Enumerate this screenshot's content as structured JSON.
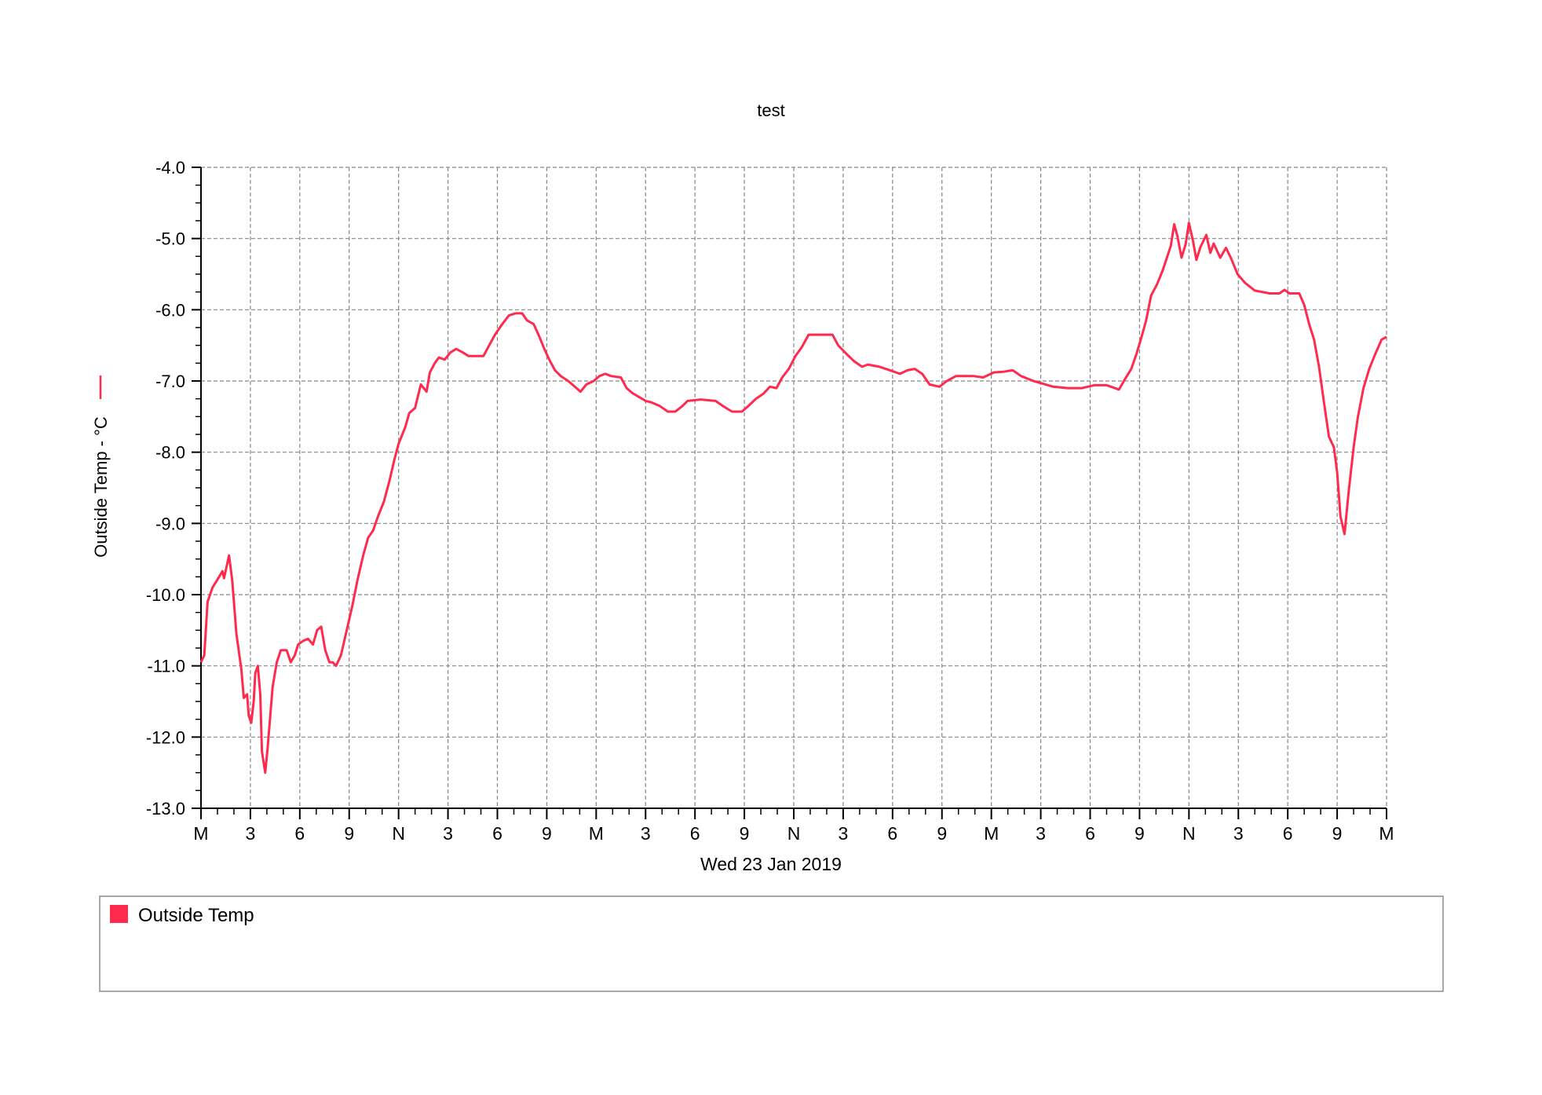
{
  "chart_data": {
    "type": "line",
    "title": "test",
    "xlabel": "Wed 23 Jan 2019",
    "ylabel": "Outside Temp - °C",
    "ylim": [
      -13.0,
      -4.0
    ],
    "xlim": [
      0,
      72
    ],
    "yticks": [
      "-4.0",
      "-5.0",
      "-6.0",
      "-7.0",
      "-8.0",
      "-9.0",
      "-10.0",
      "-11.0",
      "-12.0",
      "-13.0"
    ],
    "xtick_labels": [
      "M",
      "3",
      "6",
      "9",
      "N",
      "3",
      "6",
      "9",
      "M",
      "3",
      "6",
      "9",
      "N",
      "3",
      "6",
      "9",
      "M",
      "3",
      "6",
      "9",
      "N",
      "3",
      "6",
      "9",
      "M"
    ],
    "grid": true,
    "legend_placement": "bottom",
    "series": [
      {
        "name": "Outside Temp",
        "color": "#ff2a4d",
        "x": [
          0,
          0.2,
          0.4,
          0.7,
          1.1,
          1.3,
          1.4,
          1.7,
          1.9,
          2.15,
          2.45,
          2.6,
          2.8,
          2.9,
          3.05,
          3.2,
          3.3,
          3.45,
          3.6,
          3.7,
          3.9,
          4.05,
          4.35,
          4.6,
          4.85,
          5.2,
          5.45,
          5.7,
          5.9,
          6.2,
          6.5,
          6.8,
          7.05,
          7.3,
          7.55,
          7.8,
          8.0,
          8.2,
          8.5,
          8.85,
          9.2,
          9.5,
          9.85,
          10.15,
          10.45,
          10.75,
          11.1,
          11.45,
          11.75,
          12.0,
          12.4,
          12.65,
          13.0,
          13.35,
          13.7,
          13.9,
          14.2,
          14.45,
          14.8,
          15.15,
          15.5,
          15.9,
          16.25,
          17.15,
          17.5,
          17.85,
          18.3,
          18.7,
          19.1,
          19.5,
          19.8,
          20.2,
          20.5,
          20.85,
          21.15,
          21.5,
          21.85,
          22.3,
          22.7,
          23.05,
          23.4,
          23.85,
          24.2,
          24.55,
          24.9,
          25.5,
          25.85,
          26.2,
          26.65,
          27.0,
          27.35,
          27.85,
          28.35,
          28.8,
          29.2,
          29.55,
          30.35,
          31.25,
          31.75,
          32.25,
          32.85,
          33.2,
          33.7,
          34.15,
          34.55,
          34.95,
          35.3,
          35.7,
          36.1,
          36.5,
          36.9,
          37.7,
          38.35,
          38.7,
          39.2,
          39.65,
          40.15,
          40.5,
          41.2,
          41.85,
          42.45,
          42.9,
          43.35,
          43.8,
          44.25,
          44.85,
          45.3,
          45.85,
          46.9,
          47.5,
          48.15,
          48.75,
          49.3,
          49.8,
          50.55,
          51.15,
          51.75,
          52.65,
          53.5,
          54.25,
          55.0,
          55.75,
          56.1,
          56.5,
          56.8,
          57.1,
          57.4,
          57.7,
          58.05,
          58.4,
          58.9,
          59.1,
          59.3,
          59.55,
          59.8,
          60.0,
          60.25,
          60.45,
          60.7,
          61.05,
          61.3,
          61.5,
          61.9,
          62.25,
          62.6,
          62.95,
          63.4,
          64.0,
          64.9,
          65.5,
          65.8,
          66.1,
          66.7,
          67.0,
          67.3,
          67.6,
          67.9,
          68.2,
          68.5,
          68.8,
          69.0,
          69.2,
          69.45,
          69.7,
          70.0,
          70.25,
          70.6,
          70.95,
          71.3,
          71.7,
          72.0
        ],
        "y": [
          -10.95,
          -10.85,
          -10.1,
          -9.9,
          -9.75,
          -9.67,
          -9.77,
          -9.45,
          -9.8,
          -10.55,
          -11.05,
          -11.45,
          -11.4,
          -11.7,
          -11.8,
          -11.5,
          -11.1,
          -11.0,
          -11.4,
          -12.2,
          -12.5,
          -12.15,
          -11.3,
          -10.95,
          -10.78,
          -10.78,
          -10.95,
          -10.85,
          -10.7,
          -10.65,
          -10.62,
          -10.7,
          -10.5,
          -10.45,
          -10.78,
          -10.95,
          -10.95,
          -11.0,
          -10.85,
          -10.5,
          -10.15,
          -9.8,
          -9.45,
          -9.2,
          -9.1,
          -8.9,
          -8.7,
          -8.4,
          -8.1,
          -7.88,
          -7.65,
          -7.45,
          -7.38,
          -7.05,
          -7.15,
          -6.88,
          -6.75,
          -6.67,
          -6.7,
          -6.6,
          -6.55,
          -6.6,
          -6.65,
          -6.65,
          -6.5,
          -6.35,
          -6.2,
          -6.08,
          -6.05,
          -6.05,
          -6.15,
          -6.2,
          -6.35,
          -6.55,
          -6.7,
          -6.85,
          -6.93,
          -7.0,
          -7.08,
          -7.15,
          -7.05,
          -7.0,
          -6.93,
          -6.9,
          -6.93,
          -6.95,
          -7.1,
          -7.17,
          -7.23,
          -7.28,
          -7.3,
          -7.35,
          -7.43,
          -7.43,
          -7.36,
          -7.28,
          -7.26,
          -7.28,
          -7.36,
          -7.43,
          -7.43,
          -7.36,
          -7.25,
          -7.18,
          -7.08,
          -7.1,
          -6.95,
          -6.83,
          -6.65,
          -6.52,
          -6.35,
          -6.35,
          -6.35,
          -6.5,
          -6.62,
          -6.72,
          -6.8,
          -6.77,
          -6.8,
          -6.85,
          -6.9,
          -6.85,
          -6.83,
          -6.9,
          -7.05,
          -7.08,
          -7.0,
          -6.93,
          -6.93,
          -6.95,
          -6.88,
          -6.87,
          -6.85,
          -6.93,
          -7.0,
          -7.04,
          -7.08,
          -7.1,
          -7.1,
          -7.06,
          -7.06,
          -7.12,
          -6.98,
          -6.83,
          -6.63,
          -6.4,
          -6.15,
          -5.8,
          -5.65,
          -5.45,
          -5.1,
          -4.8,
          -4.97,
          -5.27,
          -5.08,
          -4.78,
          -5.04,
          -5.3,
          -5.12,
          -4.95,
          -5.2,
          -5.07,
          -5.27,
          -5.13,
          -5.3,
          -5.5,
          -5.62,
          -5.73,
          -5.77,
          -5.77,
          -5.72,
          -5.77,
          -5.77,
          -5.93,
          -6.2,
          -6.42,
          -6.8,
          -7.3,
          -7.78,
          -7.93,
          -8.28,
          -8.9,
          -9.15,
          -8.55,
          -7.93,
          -7.52,
          -7.1,
          -6.83,
          -6.63,
          -6.42,
          -6.38
        ]
      }
    ]
  },
  "legend": {
    "items": [
      {
        "label": "Outside Temp",
        "color": "#ff2a4d"
      }
    ]
  }
}
